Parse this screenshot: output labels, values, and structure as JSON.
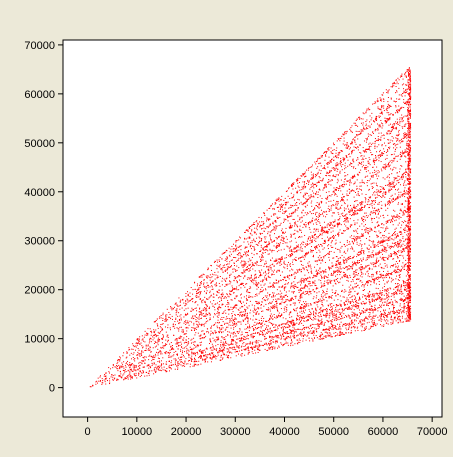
{
  "chart_data": {
    "type": "scatter",
    "title": "",
    "xlabel": "",
    "ylabel": "",
    "xlim": [
      -5000,
      72000
    ],
    "ylim": [
      -6000,
      71000
    ],
    "xticks": [
      0,
      10000,
      20000,
      30000,
      40000,
      50000,
      60000,
      70000
    ],
    "yticks": [
      0,
      10000,
      20000,
      30000,
      40000,
      50000,
      60000,
      70000
    ],
    "xtick_labels": [
      "0",
      "10000",
      "20000",
      "30000",
      "40000",
      "50000",
      "60000",
      "70000"
    ],
    "ytick_labels": [
      "0",
      "10000",
      "20000",
      "30000",
      "40000",
      "50000",
      "60000",
      "70000"
    ],
    "grid": false,
    "legend": "none",
    "point_color": "#ff0000",
    "x_range_of_points": [
      0,
      65536
    ],
    "slope_range_of_points": [
      0.21,
      1.0
    ],
    "dense_ray_slopes": [
      1.0,
      0.94,
      0.9,
      0.86,
      0.8,
      0.75,
      0.68,
      0.66,
      0.62,
      0.56,
      0.5,
      0.47,
      0.44,
      0.38,
      0.33,
      0.31,
      0.28,
      0.25
    ]
  },
  "colors": {
    "window_background": "#ece9d8",
    "plot_background": "#ffffff",
    "axis": "#000000"
  }
}
